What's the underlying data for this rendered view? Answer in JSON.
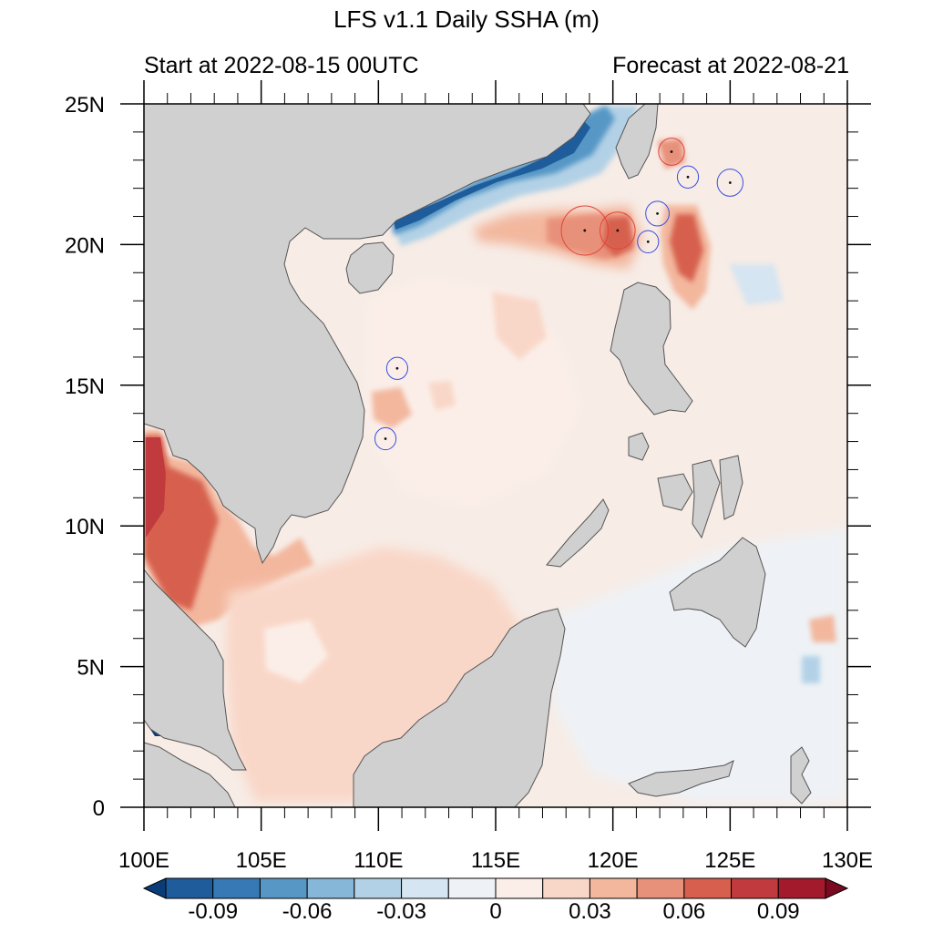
{
  "title": "LFS v1.1 Daily SSHA (m)",
  "subtitle_left": "Start at 2022-08-15 00UTC",
  "subtitle_right": "Forecast at 2022-08-21",
  "map": {
    "lon_range": [
      100,
      130
    ],
    "lat_range": [
      0,
      25
    ],
    "x_ticks": [
      {
        "value": 100,
        "label": "100E"
      },
      {
        "value": 105,
        "label": "105E"
      },
      {
        "value": 110,
        "label": "110E"
      },
      {
        "value": 115,
        "label": "115E"
      },
      {
        "value": 120,
        "label": "120E"
      },
      {
        "value": 125,
        "label": "125E"
      },
      {
        "value": 130,
        "label": "130E"
      }
    ],
    "y_ticks": [
      {
        "value": 25,
        "label": "25N"
      },
      {
        "value": 20,
        "label": "20N"
      },
      {
        "value": 15,
        "label": "15N"
      },
      {
        "value": 10,
        "label": "10N"
      },
      {
        "value": 5,
        "label": "5N"
      },
      {
        "value": 0,
        "label": "0"
      }
    ],
    "land_color": "#d0d0d0",
    "ocean_base_color": "#f7ece6"
  },
  "colorbar": {
    "colors": [
      "#0a3d78",
      "#1f5c9c",
      "#3679b5",
      "#5797c6",
      "#86b6d8",
      "#b2d1e6",
      "#d5e5f1",
      "#eef2f6",
      "#fbeee8",
      "#f9d7c8",
      "#f3b79e",
      "#e8917a",
      "#d6604d",
      "#c03a3e",
      "#a31a2c",
      "#7a0a20"
    ],
    "labels": [
      {
        "value": -0.09,
        "label": "-0.09"
      },
      {
        "value": -0.06,
        "label": "-0.06"
      },
      {
        "value": -0.03,
        "label": "-0.03"
      },
      {
        "value": 0,
        "label": "0"
      },
      {
        "value": 0.03,
        "label": "0.03"
      },
      {
        "value": 0.06,
        "label": "0.06"
      },
      {
        "value": 0.09,
        "label": "0.09"
      }
    ]
  },
  "eddies": [
    {
      "type": "anticyclonic",
      "lon": 118.8,
      "lat": 20.5,
      "radius_deg": 1.0,
      "color": "#e0453a"
    },
    {
      "type": "anticyclonic",
      "lon": 120.2,
      "lat": 20.5,
      "radius_deg": 0.75,
      "color": "#e0453a"
    },
    {
      "type": "anticyclonic",
      "lon": 122.5,
      "lat": 23.3,
      "radius_deg": 0.55,
      "color": "#e0453a"
    },
    {
      "type": "cyclonic",
      "lon": 121.5,
      "lat": 20.1,
      "radius_deg": 0.45,
      "color": "#3a4fe0"
    },
    {
      "type": "cyclonic",
      "lon": 121.9,
      "lat": 21.1,
      "radius_deg": 0.5,
      "color": "#3a4fe0"
    },
    {
      "type": "cyclonic",
      "lon": 123.2,
      "lat": 22.4,
      "radius_deg": 0.45,
      "color": "#3a4fe0"
    },
    {
      "type": "cyclonic",
      "lon": 125.0,
      "lat": 22.2,
      "radius_deg": 0.55,
      "color": "#3a4fe0"
    },
    {
      "type": "cyclonic",
      "lon": 110.8,
      "lat": 15.6,
      "radius_deg": 0.45,
      "color": "#3a4fe0"
    },
    {
      "type": "cyclonic",
      "lon": 110.3,
      "lat": 13.1,
      "radius_deg": 0.45,
      "color": "#3a4fe0"
    }
  ]
}
